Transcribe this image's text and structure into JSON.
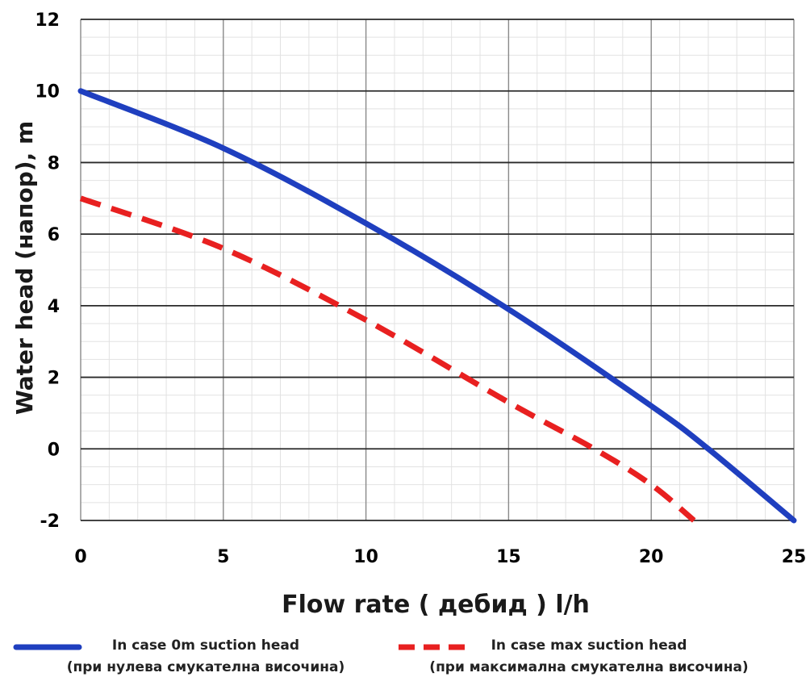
{
  "chart_data": {
    "type": "line",
    "xlabel": "Flow rate ( дебид ) l/h",
    "ylabel": "Water head (напор), m",
    "xlim": [
      0,
      25
    ],
    "ylim": [
      -2,
      12
    ],
    "x_ticks": [
      0,
      5,
      10,
      15,
      20,
      25
    ],
    "y_ticks": [
      -2,
      0,
      2,
      4,
      6,
      8,
      10,
      12
    ],
    "grid": true,
    "legend_position": "bottom",
    "series": [
      {
        "name": "In case 0m suction head",
        "name_line2": "(при нулева смукателна височина)",
        "color": "#1f3fbf",
        "style": "solid",
        "x": [
          0,
          5,
          10,
          15,
          20,
          22,
          25
        ],
        "y": [
          10,
          8.4,
          6.3,
          3.9,
          1.2,
          0,
          -2
        ]
      },
      {
        "name": "In case max suction head",
        "name_line2": "(при  максимална смукателна височина)",
        "color": "#e82020",
        "style": "dashed",
        "x": [
          0,
          5,
          10,
          15,
          18,
          20,
          21.5
        ],
        "y": [
          7,
          5.6,
          3.6,
          1.3,
          0,
          -1,
          -2
        ]
      }
    ]
  }
}
